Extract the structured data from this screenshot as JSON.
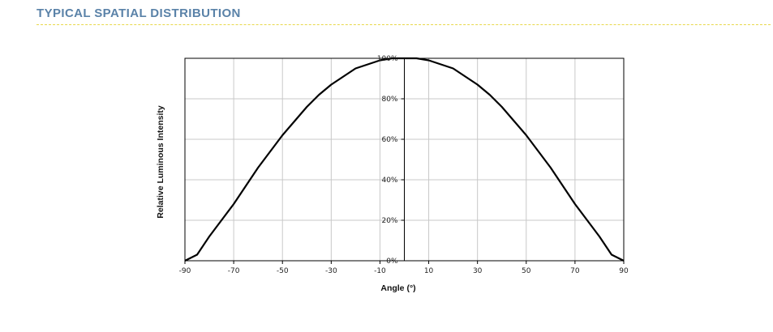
{
  "page": {
    "section_title": "TYPICAL SPATIAL DISTRIBUTION",
    "accent_color": "#5a82a8",
    "rule_color": "#e8d84a"
  },
  "chart_data": {
    "type": "line",
    "title": "",
    "xlabel": "Angle (°)",
    "ylabel": "Relative Luminous Intensity",
    "xlim": [
      -90,
      90
    ],
    "ylim": [
      0,
      100
    ],
    "x_ticks": [
      -90,
      -70,
      -50,
      -30,
      -10,
      10,
      30,
      50,
      70,
      90
    ],
    "y_ticks": [
      0,
      20,
      40,
      60,
      80,
      100
    ],
    "y_tick_labels": [
      "0%",
      "20%",
      "40%",
      "60%",
      "80%",
      "100%"
    ],
    "grid": true,
    "legend": "none",
    "series": [
      {
        "color": "#000000",
        "x": [
          -90,
          -85,
          -80,
          -75,
          -70,
          -65,
          -60,
          -55,
          -50,
          -45,
          -40,
          -35,
          -30,
          -25,
          -20,
          -15,
          -10,
          -5,
          0,
          5,
          10,
          15,
          20,
          25,
          30,
          35,
          40,
          45,
          50,
          55,
          60,
          65,
          70,
          75,
          80,
          85,
          90
        ],
        "y": [
          0,
          3,
          12,
          20,
          28,
          37,
          46,
          54,
          62,
          69,
          76,
          82,
          87,
          91,
          95,
          97,
          99,
          100,
          100,
          100,
          99,
          97,
          95,
          91,
          87,
          82,
          76,
          69,
          62,
          54,
          46,
          37,
          28,
          20,
          12,
          3,
          0
        ]
      }
    ]
  }
}
